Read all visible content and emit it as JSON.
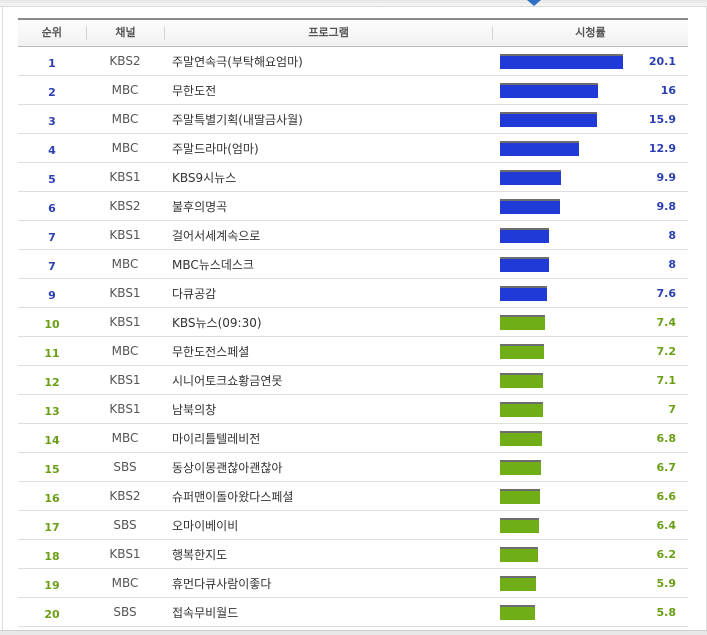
{
  "header": {
    "rank": "순위",
    "channel": "채널",
    "program": "프로그램",
    "rating": "시청률"
  },
  "colors": {
    "top_bar": "#1f3ad6",
    "top_text": "#2b3fb3",
    "low_bar": "#6fae17",
    "low_text": "#6a9e14"
  },
  "max_rating": 20.1,
  "rows": [
    {
      "rank": "1",
      "channel": "KBS2",
      "program": "주말연속극(부탁해요엄마)",
      "rating": "20.1",
      "value": 20.1
    },
    {
      "rank": "2",
      "channel": "MBC",
      "program": "무한도전",
      "rating": "16",
      "value": 16
    },
    {
      "rank": "3",
      "channel": "MBC",
      "program": "주말특별기획(내딸금사월)",
      "rating": "15.9",
      "value": 15.9
    },
    {
      "rank": "4",
      "channel": "MBC",
      "program": "주말드라마(엄마)",
      "rating": "12.9",
      "value": 12.9
    },
    {
      "rank": "5",
      "channel": "KBS1",
      "program": "KBS9시뉴스",
      "rating": "9.9",
      "value": 9.9
    },
    {
      "rank": "6",
      "channel": "KBS2",
      "program": "불후의명곡",
      "rating": "9.8",
      "value": 9.8
    },
    {
      "rank": "7",
      "channel": "KBS1",
      "program": "걸어서세계속으로",
      "rating": "8",
      "value": 8
    },
    {
      "rank": "7",
      "channel": "MBC",
      "program": "MBC뉴스데스크",
      "rating": "8",
      "value": 8
    },
    {
      "rank": "9",
      "channel": "KBS1",
      "program": "다큐공감",
      "rating": "7.6",
      "value": 7.6
    },
    {
      "rank": "10",
      "channel": "KBS1",
      "program": "KBS뉴스(09:30)",
      "rating": "7.4",
      "value": 7.4
    },
    {
      "rank": "11",
      "channel": "MBC",
      "program": "무한도전스페셜",
      "rating": "7.2",
      "value": 7.2
    },
    {
      "rank": "12",
      "channel": "KBS1",
      "program": "시니어토크쇼황금연못",
      "rating": "7.1",
      "value": 7.1
    },
    {
      "rank": "13",
      "channel": "KBS1",
      "program": "남북의창",
      "rating": "7",
      "value": 7
    },
    {
      "rank": "14",
      "channel": "MBC",
      "program": "마이리틀텔레비전",
      "rating": "6.8",
      "value": 6.8
    },
    {
      "rank": "15",
      "channel": "SBS",
      "program": "동상이몽괜찮아괜찮아",
      "rating": "6.7",
      "value": 6.7
    },
    {
      "rank": "16",
      "channel": "KBS2",
      "program": "슈퍼맨이돌아왔다스페셜",
      "rating": "6.6",
      "value": 6.6
    },
    {
      "rank": "17",
      "channel": "SBS",
      "program": "오마이베이비",
      "rating": "6.4",
      "value": 6.4
    },
    {
      "rank": "18",
      "channel": "KBS1",
      "program": "행복한지도",
      "rating": "6.2",
      "value": 6.2
    },
    {
      "rank": "19",
      "channel": "MBC",
      "program": "휴먼다큐사람이좋다",
      "rating": "5.9",
      "value": 5.9
    },
    {
      "rank": "20",
      "channel": "SBS",
      "program": "접속무비월드",
      "rating": "5.8",
      "value": 5.8
    }
  ]
}
